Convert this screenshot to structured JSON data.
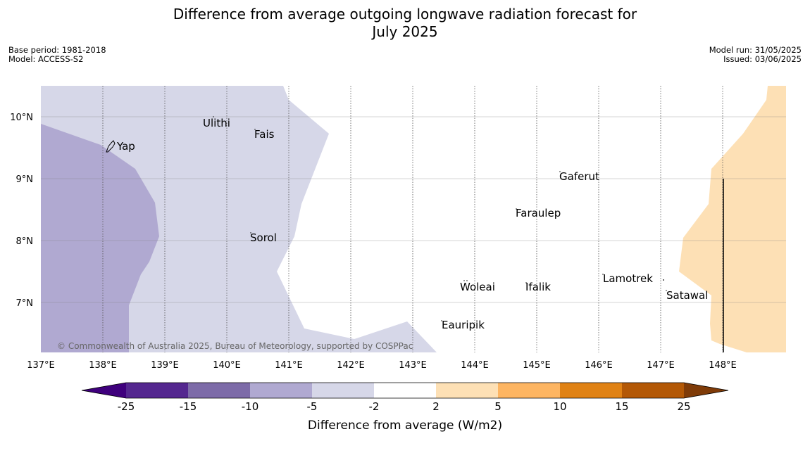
{
  "title_line1": "Difference from average outgoing longwave radiation forecast for",
  "title_line2": "July 2025",
  "base_period": "Base period: 1981-2018",
  "model": "Model: ACCESS-S2",
  "model_run": "Model run: 31/05/2025",
  "issued": "Issued: 03/06/2025",
  "copyright": "© Commonwealth of Australia 2025, Bureau of Meteorology, supported by COSPPac",
  "lon_labels": [
    "137°E",
    "138°E",
    "139°E",
    "140°E",
    "141°E",
    "142°E",
    "143°E",
    "144°E",
    "145°E",
    "146°E",
    "147°E",
    "148°E"
  ],
  "lat_labels": [
    "10°N",
    "9°N",
    "8°N",
    "7°N"
  ],
  "places": [
    "Ulithi",
    "Fais",
    "Yap",
    "Gaferut",
    "Faraulep",
    "Sorol",
    "Lamotrek",
    "Woleai",
    "Ifalik",
    "Satawal",
    "Eauripik"
  ],
  "colorbar": {
    "label": "Difference from average (W/m2)",
    "ticks": [
      "-25",
      "-15",
      "-10",
      "-5",
      "-2",
      "2",
      "5",
      "10",
      "15",
      "25"
    ],
    "colors": [
      "#3f007d",
      "#54278f",
      "#7d6ba8",
      "#b0a9d1",
      "#d6d7e8",
      "#ffffff",
      "#fde0b5",
      "#fdb562",
      "#e08214",
      "#b35806",
      "#7f3b08"
    ]
  },
  "legend_colors": {
    "minus10_to_minus5": "#b0a9d1",
    "minus5_to_minus2": "#d6d7e8",
    "minus2_to_2": "#ffffff",
    "2_to_5": "#fde0b5"
  }
}
